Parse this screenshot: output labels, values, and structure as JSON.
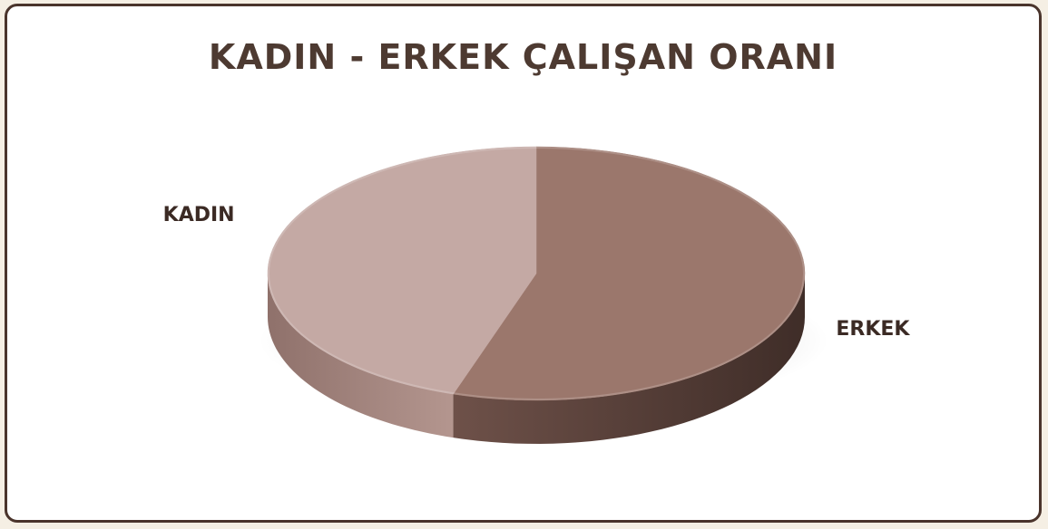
{
  "chart_data": {
    "type": "pie",
    "title": "KADIN - ERKEK ÇALIŞAN ORANI",
    "categories": [
      "KADIN",
      "ERKEK"
    ],
    "values": [
      45,
      55
    ],
    "colors": {
      "KADIN": {
        "top": "#c4a9a4",
        "side_light": "#b4968f",
        "side_dark": "#8f716b"
      },
      "ERKEK": {
        "top": "#9b776c",
        "side_light": "#6e5149",
        "side_dark": "#3f2d28"
      }
    },
    "legend": "none",
    "grid": false
  }
}
